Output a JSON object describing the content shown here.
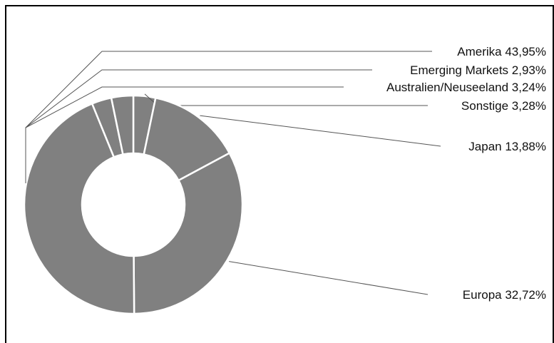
{
  "chart_data": {
    "type": "pie",
    "style": "donut",
    "slice_color": "#808080",
    "categories": [
      "Sonstige",
      "Japan",
      "Europa",
      "Amerika",
      "Emerging Markets",
      "Australien/Neuseeland"
    ],
    "values": [
      3.28,
      13.88,
      32.72,
      43.95,
      2.93,
      3.24
    ],
    "data_labels": [
      "Sonstige 3,28%",
      "Japan 13,88%",
      "Europa 32,72%",
      "Amerika 43,95%",
      "Emerging Markets 2,93%",
      "Australien/Neuseeland 3,24%"
    ]
  }
}
